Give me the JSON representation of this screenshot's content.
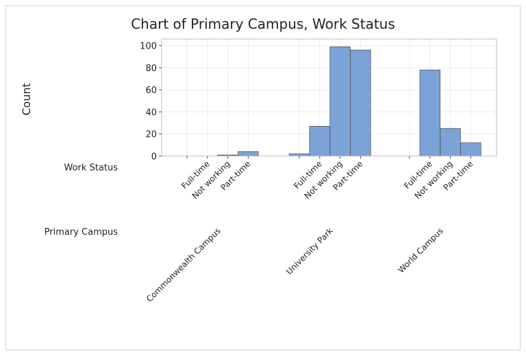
{
  "chart_data": {
    "type": "bar",
    "title": "Chart of Primary Campus, Work Status",
    "ylabel": "Count",
    "ylim": [
      0,
      100
    ],
    "yticks": [
      0,
      20,
      40,
      60,
      80,
      100
    ],
    "grid": true,
    "bar_color": "#7ba3d8",
    "level_labels": {
      "inner": "Work Status",
      "outer": "Primary Campus"
    },
    "categories": [
      "",
      "Full-time",
      "Not working",
      "Part-time"
    ],
    "groups": [
      {
        "name": "Commonwealth Campus",
        "values": [
          0,
          0,
          1,
          4
        ]
      },
      {
        "name": "University Park",
        "values": [
          2,
          27,
          99,
          96
        ]
      },
      {
        "name": "World Campus",
        "values": [
          0,
          78,
          25,
          12
        ]
      }
    ]
  }
}
